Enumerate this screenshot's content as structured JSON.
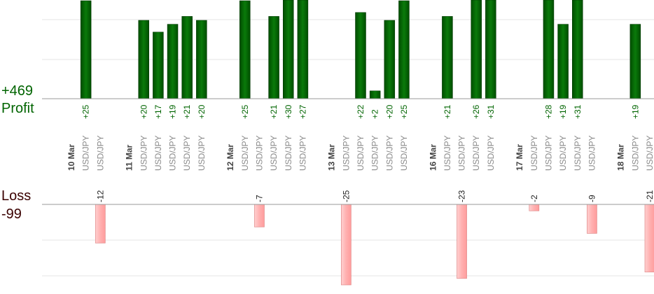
{
  "summary": {
    "profit_total": "+469",
    "profit_label": "Profit",
    "loss_label": "Loss",
    "loss_total": "-99"
  },
  "colors": {
    "profit_bar": "#006400",
    "loss_bar": "#ffb6b6",
    "profit_text": "#006400",
    "loss_text": "#3a0000",
    "gridline": "#e6e6e6",
    "baseline": "#9a9a9a"
  },
  "chart_data": {
    "type": "bar",
    "profit_axis_max": 40,
    "loss_axis_min": -30,
    "slots": [
      {
        "kind": "date",
        "label": "10 Mar"
      },
      {
        "kind": "trade",
        "pair": "USD/JPY",
        "value": 25
      },
      {
        "kind": "trade",
        "pair": "USD/JPY",
        "value": -12
      },
      {
        "kind": "gap"
      },
      {
        "kind": "date",
        "label": "11 Mar"
      },
      {
        "kind": "trade",
        "pair": "USD/JPY",
        "value": 20
      },
      {
        "kind": "trade",
        "pair": "USD/JPY",
        "value": 17
      },
      {
        "kind": "trade",
        "pair": "USD/JPY",
        "value": 19
      },
      {
        "kind": "trade",
        "pair": "USD/JPY",
        "value": 21
      },
      {
        "kind": "trade",
        "pair": "USD/JPY",
        "value": 20
      },
      {
        "kind": "gap"
      },
      {
        "kind": "date",
        "label": "12 Mar"
      },
      {
        "kind": "trade",
        "pair": "USD/JPY",
        "value": 25
      },
      {
        "kind": "trade",
        "pair": "USD/JPY",
        "value": -7
      },
      {
        "kind": "trade",
        "pair": "USD/JPY",
        "value": 21
      },
      {
        "kind": "trade",
        "pair": "USD/JPY",
        "value": 30
      },
      {
        "kind": "trade",
        "pair": "USD/JPY",
        "value": 27
      },
      {
        "kind": "gap"
      },
      {
        "kind": "date",
        "label": "13 Mar"
      },
      {
        "kind": "trade",
        "pair": "USD/JPY",
        "value": -25
      },
      {
        "kind": "trade",
        "pair": "USD/JPY",
        "value": 22
      },
      {
        "kind": "trade",
        "pair": "USD/JPY",
        "value": 2
      },
      {
        "kind": "trade",
        "pair": "USD/JPY",
        "value": 20
      },
      {
        "kind": "trade",
        "pair": "USD/JPY",
        "value": 25
      },
      {
        "kind": "gap"
      },
      {
        "kind": "date",
        "label": "16 Mar"
      },
      {
        "kind": "trade",
        "pair": "USD/JPY",
        "value": 21
      },
      {
        "kind": "trade",
        "pair": "USD/JPY",
        "value": -23
      },
      {
        "kind": "trade",
        "pair": "USD/JPY",
        "value": 26
      },
      {
        "kind": "trade",
        "pair": "USD/JPY",
        "value": 31
      },
      {
        "kind": "gap"
      },
      {
        "kind": "date",
        "label": "17 Mar"
      },
      {
        "kind": "trade",
        "pair": "USD/JPY",
        "value": -2
      },
      {
        "kind": "trade",
        "pair": "USD/JPY",
        "value": 28
      },
      {
        "kind": "trade",
        "pair": "USD/JPY",
        "value": 19
      },
      {
        "kind": "trade",
        "pair": "USD/JPY",
        "value": 31
      },
      {
        "kind": "trade",
        "pair": "USD/JPY",
        "value": -9
      },
      {
        "kind": "gap"
      },
      {
        "kind": "date",
        "label": "18 Mar"
      },
      {
        "kind": "trade",
        "pair": "USD/JPY",
        "value": 19
      },
      {
        "kind": "trade",
        "pair": "USD/JPY",
        "value": -21
      }
    ]
  }
}
